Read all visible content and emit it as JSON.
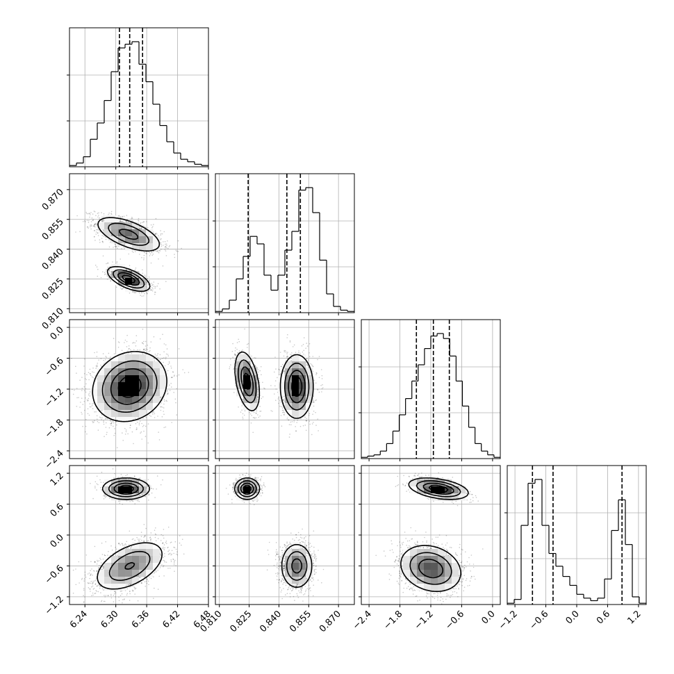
{
  "chart_data": {
    "type": "corner",
    "grid": true,
    "parameters": [
      {
        "range": [
          6.21,
          6.48
        ],
        "ticks": [
          6.24,
          6.3,
          6.36,
          6.42,
          6.48
        ],
        "tick_labels": [
          "6.24",
          "6.30",
          "6.36",
          "6.42",
          "6.48"
        ],
        "quantiles": [
          6.307,
          6.327,
          6.352
        ],
        "histogram": [
          0.01,
          0.03,
          0.08,
          0.22,
          0.35,
          0.53,
          0.76,
          0.95,
          0.98,
          1.0,
          0.82,
          0.68,
          0.5,
          0.33,
          0.2,
          0.11,
          0.06,
          0.04,
          0.02,
          0.01
        ]
      },
      {
        "range": [
          0.808,
          0.878
        ],
        "ticks": [
          0.81,
          0.825,
          0.84,
          0.855,
          0.87
        ],
        "tick_labels": [
          "0.810",
          "0.825",
          "0.840",
          "0.855",
          "0.870"
        ],
        "quantiles": [
          0.8245,
          0.844,
          0.8508
        ],
        "histogram": [
          0.01,
          0.03,
          0.1,
          0.27,
          0.45,
          0.61,
          0.55,
          0.3,
          0.18,
          0.3,
          0.5,
          0.65,
          0.98,
          1.0,
          0.8,
          0.42,
          0.15,
          0.05,
          0.02,
          0.01
        ]
      },
      {
        "range": [
          -2.55,
          0.15
        ],
        "ticks": [
          -2.4,
          -1.8,
          -1.2,
          -0.6,
          0.0
        ],
        "tick_labels": [
          "−2.4",
          "−1.8",
          "−1.2",
          "−0.6",
          "0.0"
        ],
        "quantiles": [
          -1.48,
          -1.15,
          -0.84
        ],
        "histogram": [
          0.01,
          0.02,
          0.03,
          0.06,
          0.12,
          0.22,
          0.35,
          0.48,
          0.62,
          0.75,
          0.88,
          0.98,
          1.0,
          0.96,
          0.82,
          0.62,
          0.42,
          0.25,
          0.12,
          0.06,
          0.03,
          0.01
        ]
      },
      {
        "range": [
          -1.35,
          1.35
        ],
        "ticks": [
          -1.2,
          -0.6,
          0.0,
          0.6,
          1.2
        ],
        "tick_labels": [
          "−1.2",
          "−0.6",
          "0.0",
          "0.6",
          "1.2"
        ],
        "quantiles": [
          -0.86,
          -0.46,
          0.88
        ],
        "histogram": [
          0.01,
          0.04,
          0.62,
          0.95,
          0.98,
          0.62,
          0.4,
          0.3,
          0.22,
          0.15,
          0.08,
          0.05,
          0.03,
          0.05,
          0.2,
          0.58,
          0.82,
          0.47,
          0.06,
          0.01
        ]
      }
    ],
    "panels_2d": [
      {
        "x_param": 0,
        "y_param": 1,
        "modes": [
          {
            "cx": 6.325,
            "cy": 0.8475,
            "sx": 0.032,
            "sy": 0.0045,
            "rho": -0.6,
            "weight": 0.62
          },
          {
            "cx": 6.325,
            "cy": 0.825,
            "sx": 0.02,
            "sy": 0.003,
            "rho": -0.6,
            "weight": 0.38
          }
        ]
      },
      {
        "x_param": 0,
        "y_param": 2,
        "modes": [
          {
            "cx": 6.327,
            "cy": -1.15,
            "sx": 0.035,
            "sy": 0.33,
            "rho": 0.15,
            "weight": 1.0
          }
        ]
      },
      {
        "x_param": 1,
        "y_param": 2,
        "modes": [
          {
            "cx": 0.824,
            "cy": -1.05,
            "sx": 0.003,
            "sy": 0.28,
            "rho": -0.4,
            "weight": 0.38
          },
          {
            "cx": 0.849,
            "cy": -1.15,
            "sx": 0.004,
            "sy": 0.3,
            "rho": 0.0,
            "weight": 0.62
          }
        ]
      },
      {
        "x_param": 0,
        "y_param": 3,
        "modes": [
          {
            "cx": 6.32,
            "cy": 0.9,
            "sx": 0.022,
            "sy": 0.1,
            "rho": 0.0,
            "weight": 0.33
          },
          {
            "cx": 6.327,
            "cy": -0.6,
            "sx": 0.035,
            "sy": 0.25,
            "rho": 0.5,
            "weight": 0.67
          }
        ]
      },
      {
        "x_param": 1,
        "y_param": 3,
        "modes": [
          {
            "cx": 0.824,
            "cy": 0.9,
            "sx": 0.003,
            "sy": 0.1,
            "rho": 0.0,
            "weight": 0.33
          },
          {
            "cx": 0.849,
            "cy": -0.6,
            "sx": 0.004,
            "sy": 0.22,
            "rho": 0.0,
            "weight": 0.67
          }
        ]
      },
      {
        "x_param": 2,
        "y_param": 3,
        "modes": [
          {
            "cx": -1.05,
            "cy": 0.9,
            "sx": 0.28,
            "sy": 0.1,
            "rho": -0.4,
            "weight": 0.33
          },
          {
            "cx": -1.2,
            "cy": -0.65,
            "sx": 0.3,
            "sy": 0.23,
            "rho": -0.2,
            "weight": 0.67
          }
        ]
      }
    ]
  }
}
